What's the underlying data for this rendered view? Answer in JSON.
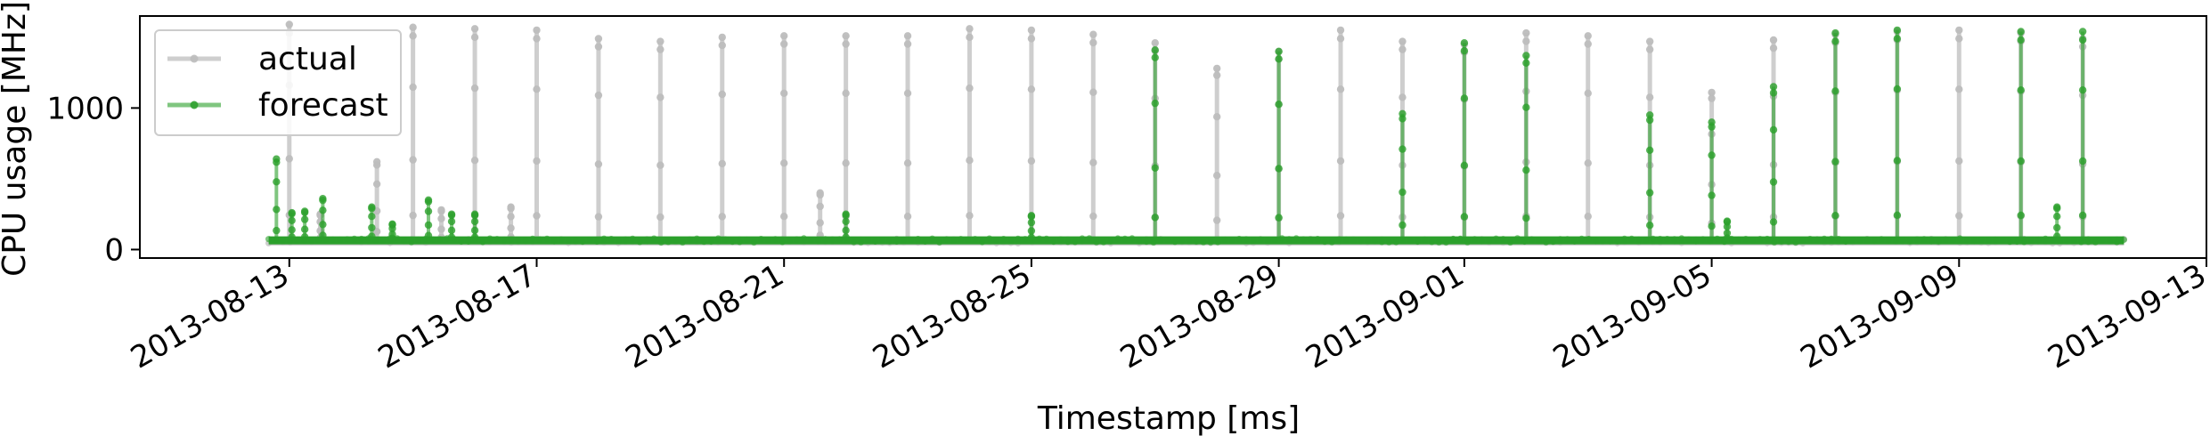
{
  "chart_data": {
    "type": "line",
    "xlabel": "Timestamp [ms]",
    "ylabel": "CPU usage [MHz]",
    "xlim": [
      "2013-08-10T14:00",
      "2013-09-13T00:00"
    ],
    "ylim": [
      -60,
      1650
    ],
    "x_ticks": [
      "2013-08-13",
      "2013-08-17",
      "2013-08-21",
      "2013-08-25",
      "2013-08-29",
      "2013-09-01",
      "2013-09-05",
      "2013-09-09",
      "2013-09-13"
    ],
    "y_ticks": [
      0,
      1000
    ],
    "legend_position": "top-left",
    "baseline": {
      "start": "2013-08-12T16:00",
      "end": "2013-09-11T16:00",
      "actual_level": 60,
      "forecast_level": 65
    },
    "series": [
      {
        "name": "actual",
        "color": "#bdbdbd",
        "spikes": [
          {
            "t": "2013-08-13T00:00",
            "v": 1590
          },
          {
            "t": "2013-08-13T12:00",
            "v": 250
          },
          {
            "t": "2013-08-14T10:00",
            "v": 620
          },
          {
            "t": "2013-08-15T00:00",
            "v": 1570
          },
          {
            "t": "2013-08-15T11:00",
            "v": 280
          },
          {
            "t": "2013-08-16T00:00",
            "v": 1560
          },
          {
            "t": "2013-08-16T14:00",
            "v": 300
          },
          {
            "t": "2013-08-17T00:00",
            "v": 1550
          },
          {
            "t": "2013-08-18T00:00",
            "v": 1490
          },
          {
            "t": "2013-08-19T00:00",
            "v": 1470
          },
          {
            "t": "2013-08-20T00:00",
            "v": 1500
          },
          {
            "t": "2013-08-21T00:00",
            "v": 1510
          },
          {
            "t": "2013-08-21T14:00",
            "v": 400
          },
          {
            "t": "2013-08-22T00:00",
            "v": 1510
          },
          {
            "t": "2013-08-23T00:00",
            "v": 1510
          },
          {
            "t": "2013-08-24T00:00",
            "v": 1560
          },
          {
            "t": "2013-08-25T00:00",
            "v": 1550
          },
          {
            "t": "2013-08-26T00:00",
            "v": 1520
          },
          {
            "t": "2013-08-27T00:00",
            "v": 1460
          },
          {
            "t": "2013-08-28T00:00",
            "v": 1280
          },
          {
            "t": "2013-08-29T00:00",
            "v": 1400
          },
          {
            "t": "2013-08-30T00:00",
            "v": 1550
          },
          {
            "t": "2013-08-31T00:00",
            "v": 1470
          },
          {
            "t": "2013-09-01T00:00",
            "v": 1450
          },
          {
            "t": "2013-09-02T00:00",
            "v": 1530
          },
          {
            "t": "2013-09-03T00:00",
            "v": 1510
          },
          {
            "t": "2013-09-04T00:00",
            "v": 1470
          },
          {
            "t": "2013-09-05T00:00",
            "v": 1110
          },
          {
            "t": "2013-09-06T00:00",
            "v": 1480
          },
          {
            "t": "2013-09-07T00:00",
            "v": 1520
          },
          {
            "t": "2013-09-08T00:00",
            "v": 1540
          },
          {
            "t": "2013-09-09T00:00",
            "v": 1550
          },
          {
            "t": "2013-09-10T00:00",
            "v": 1530
          },
          {
            "t": "2013-09-11T00:00",
            "v": 1490
          }
        ]
      },
      {
        "name": "forecast",
        "color": "#2ca02c",
        "spikes": [
          {
            "t": "2013-08-12T19:00",
            "v": 640
          },
          {
            "t": "2013-08-13T01:00",
            "v": 260
          },
          {
            "t": "2013-08-13T06:00",
            "v": 270
          },
          {
            "t": "2013-08-13T13:00",
            "v": 360
          },
          {
            "t": "2013-08-14T08:00",
            "v": 300
          },
          {
            "t": "2013-08-14T16:00",
            "v": 180
          },
          {
            "t": "2013-08-15T06:00",
            "v": 350
          },
          {
            "t": "2013-08-15T15:00",
            "v": 250
          },
          {
            "t": "2013-08-16T00:00",
            "v": 250
          },
          {
            "t": "2013-08-22T00:00",
            "v": 250
          },
          {
            "t": "2013-08-25T00:00",
            "v": 240
          },
          {
            "t": "2013-08-27T00:00",
            "v": 1410
          },
          {
            "t": "2013-08-29T00:00",
            "v": 1400
          },
          {
            "t": "2013-08-31T00:00",
            "v": 960
          },
          {
            "t": "2013-09-01T00:00",
            "v": 1460
          },
          {
            "t": "2013-09-02T00:00",
            "v": 1370
          },
          {
            "t": "2013-09-04T00:00",
            "v": 950
          },
          {
            "t": "2013-09-05T00:00",
            "v": 900
          },
          {
            "t": "2013-09-05T06:00",
            "v": 200
          },
          {
            "t": "2013-09-06T00:00",
            "v": 1150
          },
          {
            "t": "2013-09-07T00:00",
            "v": 1530
          },
          {
            "t": "2013-09-08T00:00",
            "v": 1550
          },
          {
            "t": "2013-09-10T00:00",
            "v": 1540
          },
          {
            "t": "2013-09-10T14:00",
            "v": 300
          },
          {
            "t": "2013-09-11T00:00",
            "v": 1540
          }
        ]
      }
    ]
  }
}
